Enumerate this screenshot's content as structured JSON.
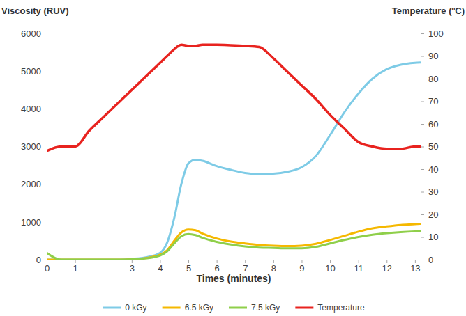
{
  "chart_data": {
    "type": "line",
    "y_label": "Viscosity (RUV)",
    "y2_label": "Temperature (ºC)",
    "x_label": "Times (minutes)",
    "x": [
      0,
      0.5,
      1,
      1.5,
      2,
      2.5,
      3,
      3.5,
      4,
      4.25,
      4.5,
      4.75,
      5,
      5.25,
      5.5,
      6,
      6.5,
      7,
      7.5,
      8,
      8.5,
      9,
      9.5,
      10,
      10.5,
      11,
      11.5,
      12,
      12.5,
      13,
      13.2
    ],
    "xlim": [
      0,
      13.2
    ],
    "xticks": [
      0,
      1,
      3,
      4,
      5,
      6,
      7,
      8,
      9,
      10,
      11,
      12,
      13
    ],
    "ylim": [
      0,
      6000
    ],
    "yticks": [
      0,
      1000,
      2000,
      3000,
      4000,
      5000,
      6000
    ],
    "y2lim": [
      0,
      100
    ],
    "y2ticks": [
      0,
      10,
      20,
      30,
      40,
      50,
      60,
      70,
      80,
      90,
      100
    ],
    "legend": "bottom",
    "series": [
      {
        "name": "0 kGy",
        "color": "#7ecbe6",
        "values": [
          0,
          0,
          0,
          0,
          0,
          0,
          20,
          60,
          180,
          450,
          1100,
          2000,
          2550,
          2650,
          2620,
          2480,
          2380,
          2300,
          2270,
          2280,
          2330,
          2450,
          2750,
          3300,
          3900,
          4400,
          4800,
          5050,
          5170,
          5220,
          5230
        ]
      },
      {
        "name": "6.5 kGy",
        "color": "#f5b800",
        "values": [
          0,
          0,
          0,
          0,
          0,
          0,
          10,
          40,
          130,
          250,
          500,
          720,
          800,
          780,
          690,
          560,
          480,
          430,
          390,
          370,
          360,
          370,
          420,
          520,
          630,
          740,
          830,
          880,
          920,
          940,
          950
        ]
      },
      {
        "name": "7.5 kGy",
        "color": "#8fcf4a",
        "values": [
          180,
          0,
          0,
          0,
          0,
          0,
          10,
          35,
          110,
          220,
          430,
          620,
          680,
          650,
          580,
          470,
          400,
          350,
          320,
          310,
          300,
          300,
          340,
          430,
          520,
          600,
          660,
          700,
          730,
          750,
          755
        ]
      },
      {
        "name": "Temperature",
        "color": "#e8231f",
        "axis": "y2",
        "values": [
          48,
          50,
          50,
          57,
          63,
          69,
          75,
          81,
          87,
          90,
          93,
          95,
          94.5,
          94.5,
          95,
          95,
          94.8,
          94.5,
          94,
          89,
          83,
          77,
          71,
          64,
          58,
          52,
          50,
          49,
          49,
          50,
          50
        ]
      }
    ]
  }
}
